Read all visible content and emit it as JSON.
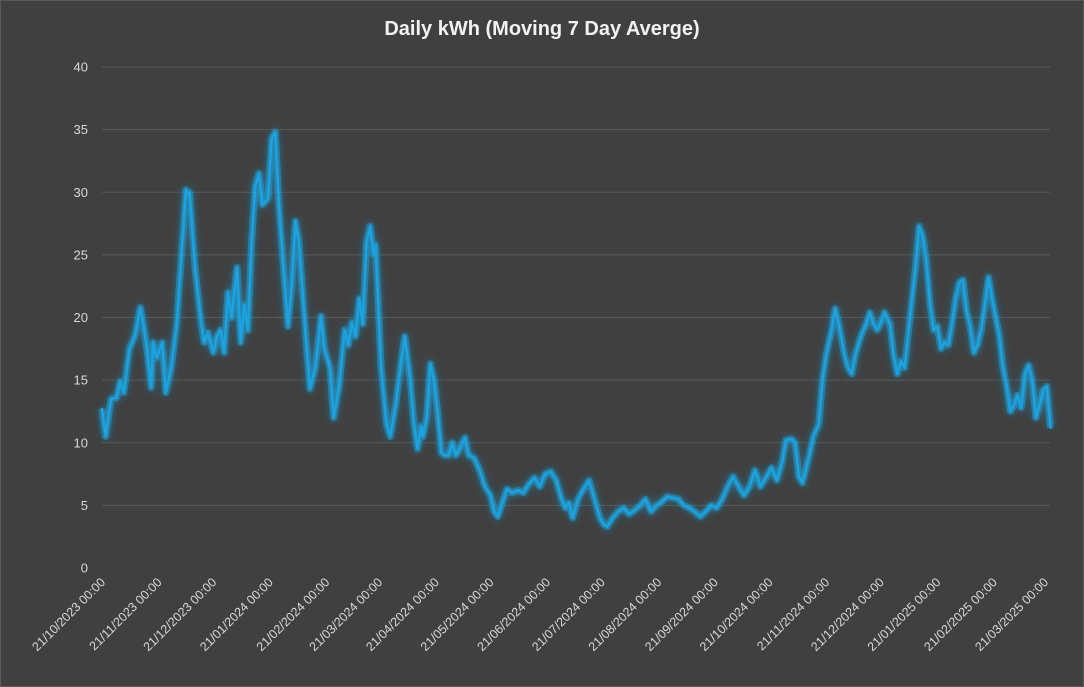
{
  "chart_data": {
    "type": "line",
    "title": "Daily kWh (Moving 7 Day Averge)",
    "xlabel": "",
    "ylabel": "",
    "ylim": [
      0,
      40
    ],
    "yticks": [
      0,
      5,
      10,
      15,
      20,
      25,
      30,
      35,
      40
    ],
    "xlim": [
      "2023-10-21",
      "2025-03-21"
    ],
    "x_tick_labels": [
      "21/10/2023 00:00",
      "21/11/2023 00:00",
      "21/12/2023 00:00",
      "21/01/2024 00:00",
      "21/02/2024 00:00",
      "21/03/2024 00:00",
      "21/04/2024 00:00",
      "21/05/2024 00:00",
      "21/06/2024 00:00",
      "21/07/2024 00:00",
      "21/08/2024 00:00",
      "21/09/2024 00:00",
      "21/10/2024 00:00",
      "21/11/2024 00:00",
      "21/12/2024 00:00",
      "21/01/2025 00:00",
      "21/02/2025 00:00",
      "21/03/2025 00:00"
    ],
    "grid": true,
    "legend": "none",
    "line_color": "#1aa3e0",
    "series": [
      {
        "values": [
          [
            "2023-10-21",
            12.7
          ],
          [
            "2023-10-23",
            10.5
          ],
          [
            "2023-10-26",
            13.5
          ],
          [
            "2023-10-29",
            13.6
          ],
          [
            "2023-10-31",
            14.9
          ],
          [
            "2023-11-02",
            14.0
          ],
          [
            "2023-11-05",
            17.5
          ],
          [
            "2023-11-08",
            18.5
          ],
          [
            "2023-11-11",
            20.8
          ],
          [
            "2023-11-13",
            19.2
          ],
          [
            "2023-11-15",
            17.0
          ],
          [
            "2023-11-17",
            14.4
          ],
          [
            "2023-11-18",
            18.0
          ],
          [
            "2023-11-20",
            16.8
          ],
          [
            "2023-11-23",
            18.0
          ],
          [
            "2023-11-25",
            14.0
          ],
          [
            "2023-11-28",
            16.0
          ],
          [
            "2023-12-01",
            19.5
          ],
          [
            "2023-12-04",
            26.0
          ],
          [
            "2023-12-06",
            30.2
          ],
          [
            "2023-12-07",
            29.8
          ],
          [
            "2023-12-08",
            30.0
          ],
          [
            "2023-12-11",
            24.0
          ],
          [
            "2023-12-14",
            20.0
          ],
          [
            "2023-12-16",
            18.0
          ],
          [
            "2023-12-18",
            18.8
          ],
          [
            "2023-12-21",
            17.2
          ],
          [
            "2023-12-23",
            18.5
          ],
          [
            "2023-12-25",
            19.0
          ],
          [
            "2023-12-27",
            17.2
          ],
          [
            "2023-12-29",
            22.0
          ],
          [
            "2023-12-31",
            20.0
          ],
          [
            "2024-01-03",
            24.0
          ],
          [
            "2024-01-05",
            18.0
          ],
          [
            "2024-01-07",
            21.0
          ],
          [
            "2024-01-09",
            19.0
          ],
          [
            "2024-01-11",
            26.0
          ],
          [
            "2024-01-13",
            30.5
          ],
          [
            "2024-01-15",
            31.5
          ],
          [
            "2024-01-17",
            29.0
          ],
          [
            "2024-01-20",
            29.5
          ],
          [
            "2024-01-22",
            34.3
          ],
          [
            "2024-01-24",
            34.8
          ],
          [
            "2024-01-26",
            29.0
          ],
          [
            "2024-01-29",
            23.0
          ],
          [
            "2024-01-31",
            19.3
          ],
          [
            "2024-02-02",
            22.5
          ],
          [
            "2024-02-04",
            27.7
          ],
          [
            "2024-02-06",
            26.0
          ],
          [
            "2024-02-08",
            22.0
          ],
          [
            "2024-02-10",
            18.0
          ],
          [
            "2024-02-12",
            14.3
          ],
          [
            "2024-02-15",
            16.0
          ],
          [
            "2024-02-18",
            20.1
          ],
          [
            "2024-02-20",
            17.5
          ],
          [
            "2024-02-23",
            16.0
          ],
          [
            "2024-02-25",
            12.0
          ],
          [
            "2024-02-28",
            14.5
          ],
          [
            "2024-03-02",
            19.0
          ],
          [
            "2024-03-04",
            17.8
          ],
          [
            "2024-03-06",
            19.6
          ],
          [
            "2024-03-08",
            18.5
          ],
          [
            "2024-03-10",
            21.5
          ],
          [
            "2024-03-12",
            19.5
          ],
          [
            "2024-03-14",
            26.0
          ],
          [
            "2024-03-16",
            27.3
          ],
          [
            "2024-03-18",
            25.0
          ],
          [
            "2024-03-19",
            25.8
          ],
          [
            "2024-03-22",
            16.0
          ],
          [
            "2024-03-25",
            11.5
          ],
          [
            "2024-03-27",
            10.5
          ],
          [
            "2024-03-30",
            13.0
          ],
          [
            "2024-04-02",
            16.5
          ],
          [
            "2024-04-04",
            18.5
          ],
          [
            "2024-04-07",
            15.0
          ],
          [
            "2024-04-09",
            11.5
          ],
          [
            "2024-04-11",
            9.5
          ],
          [
            "2024-04-13",
            11.3
          ],
          [
            "2024-04-14",
            10.5
          ],
          [
            "2024-04-16",
            12.0
          ],
          [
            "2024-04-18",
            16.3
          ],
          [
            "2024-04-20",
            15.0
          ],
          [
            "2024-04-22",
            12.5
          ],
          [
            "2024-04-24",
            9.2
          ],
          [
            "2024-04-26",
            9.0
          ],
          [
            "2024-04-28",
            9.0
          ],
          [
            "2024-04-30",
            10.0
          ],
          [
            "2024-05-02",
            9.0
          ],
          [
            "2024-05-05",
            9.8
          ],
          [
            "2024-05-07",
            10.4
          ],
          [
            "2024-05-09",
            9.0
          ],
          [
            "2024-05-12",
            8.8
          ],
          [
            "2024-05-15",
            7.8
          ],
          [
            "2024-05-18",
            6.5
          ],
          [
            "2024-05-21",
            5.8
          ],
          [
            "2024-05-23",
            4.5
          ],
          [
            "2024-05-25",
            4.1
          ],
          [
            "2024-05-27",
            5.0
          ],
          [
            "2024-05-30",
            6.3
          ],
          [
            "2024-06-02",
            6.0
          ],
          [
            "2024-06-05",
            6.2
          ],
          [
            "2024-06-08",
            6.0
          ],
          [
            "2024-06-11",
            6.7
          ],
          [
            "2024-06-14",
            7.2
          ],
          [
            "2024-06-17",
            6.5
          ],
          [
            "2024-06-20",
            7.5
          ],
          [
            "2024-06-23",
            7.7
          ],
          [
            "2024-06-26",
            7.0
          ],
          [
            "2024-06-29",
            5.5
          ],
          [
            "2024-07-01",
            4.8
          ],
          [
            "2024-07-03",
            5.2
          ],
          [
            "2024-07-05",
            4.0
          ],
          [
            "2024-07-08",
            5.5
          ],
          [
            "2024-07-11",
            6.3
          ],
          [
            "2024-07-14",
            7.0
          ],
          [
            "2024-07-17",
            5.5
          ],
          [
            "2024-07-20",
            4.0
          ],
          [
            "2024-07-22",
            3.5
          ],
          [
            "2024-07-24",
            3.3
          ],
          [
            "2024-07-27",
            4.0
          ],
          [
            "2024-07-30",
            4.5
          ],
          [
            "2024-08-02",
            4.8
          ],
          [
            "2024-08-05",
            4.3
          ],
          [
            "2024-08-08",
            4.6
          ],
          [
            "2024-08-11",
            5.0
          ],
          [
            "2024-08-14",
            5.5
          ],
          [
            "2024-08-17",
            4.5
          ],
          [
            "2024-08-20",
            5.0
          ],
          [
            "2024-08-23",
            5.3
          ],
          [
            "2024-08-26",
            5.7
          ],
          [
            "2024-08-29",
            5.6
          ],
          [
            "2024-09-01",
            5.5
          ],
          [
            "2024-09-04",
            5.0
          ],
          [
            "2024-09-07",
            4.8
          ],
          [
            "2024-09-10",
            4.5
          ],
          [
            "2024-09-13",
            4.1
          ],
          [
            "2024-09-16",
            4.5
          ],
          [
            "2024-09-19",
            5.0
          ],
          [
            "2024-09-22",
            4.8
          ],
          [
            "2024-09-25",
            5.5
          ],
          [
            "2024-09-28",
            6.5
          ],
          [
            "2024-10-01",
            7.3
          ],
          [
            "2024-10-04",
            6.5
          ],
          [
            "2024-10-07",
            5.8
          ],
          [
            "2024-10-10",
            6.5
          ],
          [
            "2024-10-13",
            7.8
          ],
          [
            "2024-10-16",
            6.5
          ],
          [
            "2024-10-19",
            7.2
          ],
          [
            "2024-10-22",
            8.0
          ],
          [
            "2024-10-25",
            7.0
          ],
          [
            "2024-10-28",
            8.5
          ],
          [
            "2024-10-30",
            10.2
          ],
          [
            "2024-11-02",
            10.3
          ],
          [
            "2024-11-04",
            10.0
          ],
          [
            "2024-11-06",
            7.3
          ],
          [
            "2024-11-08",
            6.8
          ],
          [
            "2024-11-11",
            8.5
          ],
          [
            "2024-11-14",
            10.5
          ],
          [
            "2024-11-17",
            11.5
          ],
          [
            "2024-11-19",
            15.0
          ],
          [
            "2024-11-21",
            17.0
          ],
          [
            "2024-11-24",
            19.0
          ],
          [
            "2024-11-26",
            20.7
          ],
          [
            "2024-11-28",
            19.5
          ],
          [
            "2024-12-01",
            17.0
          ],
          [
            "2024-12-03",
            16.0
          ],
          [
            "2024-12-05",
            15.5
          ],
          [
            "2024-12-07",
            17.0
          ],
          [
            "2024-12-10",
            18.5
          ],
          [
            "2024-12-13",
            19.5
          ],
          [
            "2024-12-15",
            20.4
          ],
          [
            "2024-12-17",
            19.5
          ],
          [
            "2024-12-19",
            19.0
          ],
          [
            "2024-12-21",
            19.6
          ],
          [
            "2024-12-23",
            20.4
          ],
          [
            "2024-12-26",
            19.5
          ],
          [
            "2024-12-28",
            17.0
          ],
          [
            "2024-12-30",
            15.5
          ],
          [
            "2025-01-01",
            16.5
          ],
          [
            "2025-01-03",
            16.0
          ],
          [
            "2025-01-06",
            20.0
          ],
          [
            "2025-01-09",
            24.0
          ],
          [
            "2025-01-11",
            27.3
          ],
          [
            "2025-01-13",
            26.5
          ],
          [
            "2025-01-15",
            24.5
          ],
          [
            "2025-01-17",
            21.0
          ],
          [
            "2025-01-19",
            19.0
          ],
          [
            "2025-01-21",
            19.3
          ],
          [
            "2025-01-23",
            17.5
          ],
          [
            "2025-01-25",
            18.0
          ],
          [
            "2025-01-27",
            17.8
          ],
          [
            "2025-01-29",
            19.5
          ],
          [
            "2025-01-31",
            21.5
          ],
          [
            "2025-02-02",
            22.8
          ],
          [
            "2025-02-04",
            23.0
          ],
          [
            "2025-02-06",
            20.5
          ],
          [
            "2025-02-08",
            19.3
          ],
          [
            "2025-02-10",
            17.2
          ],
          [
            "2025-02-12",
            17.8
          ],
          [
            "2025-02-14",
            19.0
          ],
          [
            "2025-02-16",
            21.0
          ],
          [
            "2025-02-18",
            23.2
          ],
          [
            "2025-02-20",
            21.5
          ],
          [
            "2025-02-22",
            20.0
          ],
          [
            "2025-02-24",
            18.5
          ],
          [
            "2025-02-26",
            16.0
          ],
          [
            "2025-02-28",
            14.5
          ],
          [
            "2025-03-02",
            12.5
          ],
          [
            "2025-03-04",
            13.0
          ],
          [
            "2025-03-06",
            13.8
          ],
          [
            "2025-03-08",
            12.8
          ],
          [
            "2025-03-10",
            15.5
          ],
          [
            "2025-03-12",
            16.2
          ],
          [
            "2025-03-14",
            15.0
          ],
          [
            "2025-03-16",
            12.0
          ],
          [
            "2025-03-18",
            13.0
          ],
          [
            "2025-03-20",
            14.2
          ],
          [
            "2025-03-22",
            14.5
          ],
          [
            "2025-03-24",
            11.2
          ]
        ]
      }
    ]
  }
}
